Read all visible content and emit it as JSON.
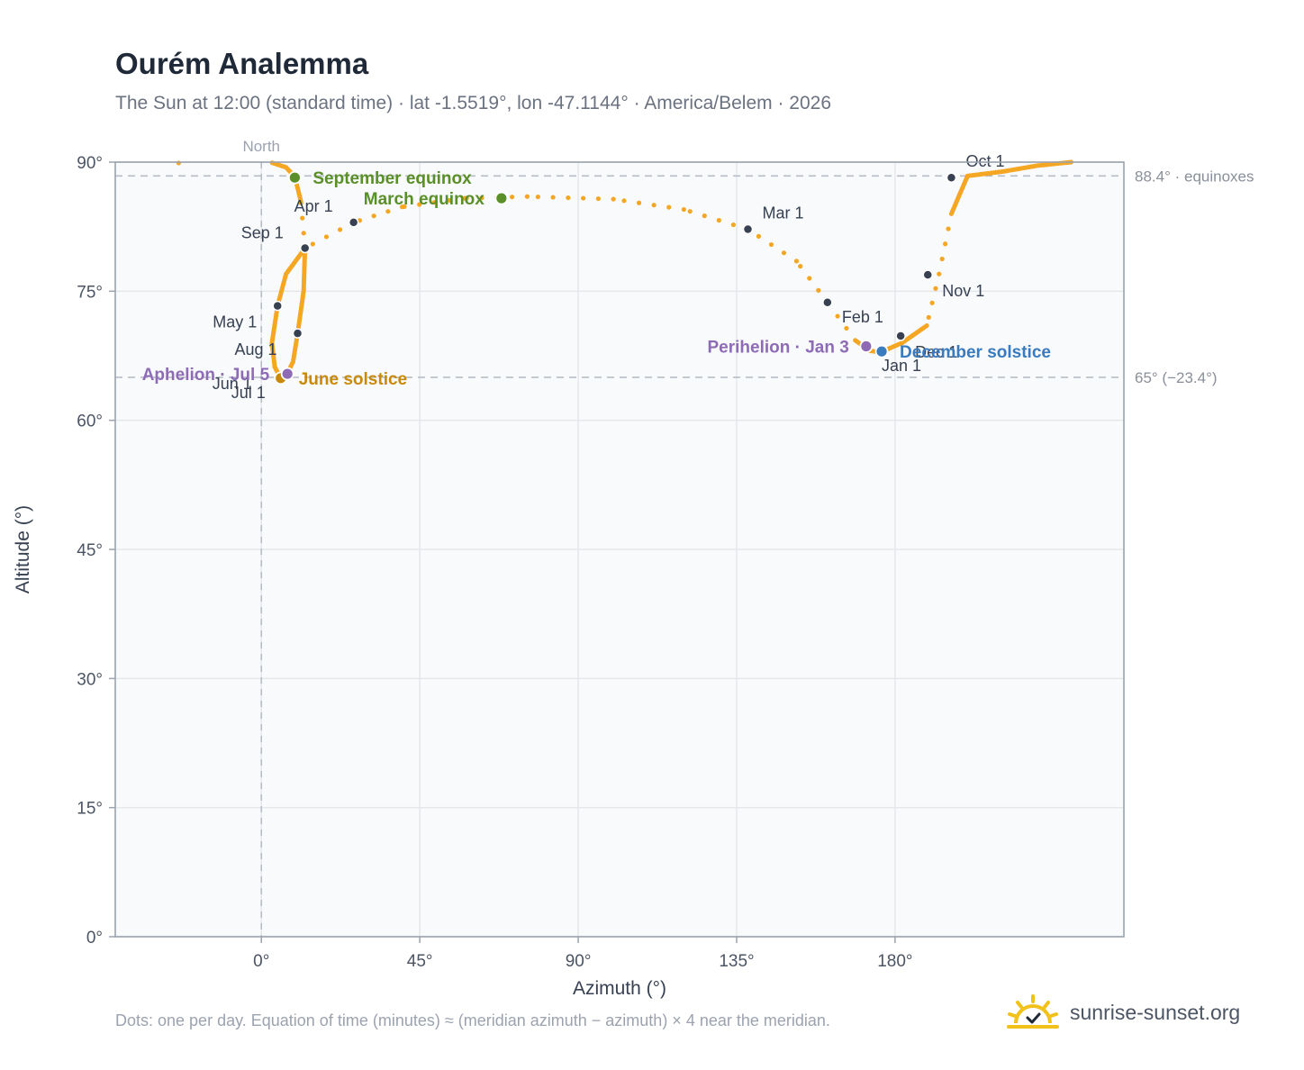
{
  "title": "Ourém Analemma",
  "subtitle": "The Sun at 12:00 (standard time) · lat -1.5519°, lon -47.1144° · America/Belem · 2026",
  "footnote": "Dots: one per day. Equation of time (minutes) ≈ (meridian azimuth − azimuth) × 4 near the meridian.",
  "brand": {
    "name": "sunrise-sunset.org",
    "logo_icon": "sun-logo-icon"
  },
  "colors": {
    "curve": "#f5a623",
    "month_dot": "#374151",
    "equinox": "#5a8f29",
    "solstice_june": "#c98a0c",
    "solstice_december": "#3a7bbf",
    "apsis": "#8e6bb5",
    "plot_bg": "#f8fafc",
    "grid": "#e5e7eb",
    "reference": "#b8bec7"
  },
  "chart_data": {
    "type": "scatter",
    "title": "Ourém Analemma",
    "xlabel": "Azimuth (°)",
    "ylabel": "Altitude (°)",
    "xlim": [
      -41.5,
      245
    ],
    "ylim": [
      0,
      90
    ],
    "xticks": [
      {
        "value": 0,
        "label": "0°"
      },
      {
        "value": 45,
        "label": "45°"
      },
      {
        "value": 90,
        "label": "90°"
      },
      {
        "value": 135,
        "label": "135°"
      },
      {
        "value": 180,
        "label": "180°"
      }
    ],
    "yticks": [
      {
        "value": 0,
        "label": "0°"
      },
      {
        "value": 15,
        "label": "15°"
      },
      {
        "value": 30,
        "label": "30°"
      },
      {
        "value": 45,
        "label": "45°"
      },
      {
        "value": 60,
        "label": "60°"
      },
      {
        "value": 75,
        "label": "75°"
      },
      {
        "value": 90,
        "label": "90°"
      }
    ],
    "grid": true,
    "north_line": {
      "x": 0,
      "label": "North"
    },
    "reference_lines": [
      {
        "y": 88.4,
        "label": "88.4° · equinoxes"
      },
      {
        "y": 65,
        "label": "65° (−23.4°)"
      }
    ],
    "curve_anchors": [
      [
        230.0,
        90.0
      ],
      [
        220.5,
        89.6
      ],
      [
        210.5,
        88.9
      ],
      [
        200.6,
        88.4
      ],
      [
        196.0,
        84.0
      ],
      [
        192.5,
        77.0
      ],
      [
        189.0,
        71.0
      ],
      [
        182.0,
        69.0
      ],
      [
        175.8,
        67.9
      ],
      [
        172.7,
        68.1
      ],
      [
        168.7,
        69.3
      ],
      [
        160.8,
        73.7
      ],
      [
        152.0,
        78.5
      ],
      [
        138.2,
        82.2
      ],
      [
        120.0,
        84.5
      ],
      [
        100.0,
        85.7
      ],
      [
        75.5,
        86.0
      ],
      [
        57.7,
        85.8
      ],
      [
        40.0,
        84.8
      ],
      [
        26.2,
        83.0
      ],
      [
        12.4,
        80.0
      ],
      [
        7.0,
        77.0
      ],
      [
        4.6,
        73.3
      ],
      [
        3.0,
        69.0
      ],
      [
        3.8,
        66.2
      ],
      [
        5.5,
        64.9
      ],
      [
        7.3,
        65.4
      ],
      [
        9.0,
        66.8
      ],
      [
        10.3,
        70.1
      ],
      [
        12.0,
        75.0
      ],
      [
        12.4,
        80.0
      ],
      [
        11.2,
        85.5
      ],
      [
        9.5,
        88.3
      ],
      [
        7.0,
        89.4
      ],
      [
        2.5,
        90.0
      ]
    ],
    "curve_extra_points": [
      {
        "x": -23.5,
        "y": 89.9
      }
    ],
    "month_markers": [
      {
        "label": "Jan 1",
        "x": 176.2,
        "y": 68.0,
        "dx": 0,
        "dy": 22
      },
      {
        "label": "Feb 1",
        "x": 160.8,
        "y": 73.7,
        "dx": 16,
        "dy": 22
      },
      {
        "label": "Mar 1",
        "x": 138.2,
        "y": 82.2,
        "dx": 16,
        "dy": -12
      },
      {
        "label": "Apr 1",
        "x": 26.2,
        "y": 83.0,
        "dx": -66,
        "dy": -12
      },
      {
        "label": "May 1",
        "x": 4.6,
        "y": 73.3,
        "dx": -72,
        "dy": 24
      },
      {
        "label": "Jun 1",
        "x": 5.5,
        "y": 64.9,
        "dx": -76,
        "dy": 12
      },
      {
        "label": "Jul 1",
        "x": 5.5,
        "y": 64.9,
        "dx": -55,
        "dy": 22
      },
      {
        "label": "Aug 1",
        "x": 10.3,
        "y": 70.1,
        "dx": -70,
        "dy": 24
      },
      {
        "label": "Sep 1",
        "x": 12.4,
        "y": 80.0,
        "dx": -71,
        "dy": -11
      },
      {
        "label": "Oct 1",
        "x": 196.0,
        "y": 88.2,
        "dx": 16,
        "dy": -12
      },
      {
        "label": "Nov 1",
        "x": 189.3,
        "y": 76.9,
        "dx": 16,
        "dy": 24
      },
      {
        "label": "Dec 1",
        "x": 181.6,
        "y": 69.8,
        "dx": 16,
        "dy": 24
      }
    ],
    "events": [
      {
        "label": "September equinox",
        "x": 9.5,
        "y": 88.2,
        "color": "#5a8f29",
        "anchor": "start",
        "dx": 20,
        "dy": 7
      },
      {
        "label": "March equinox",
        "x": 68.2,
        "y": 85.8,
        "color": "#5a8f29",
        "anchor": "end",
        "dx": -19,
        "dy": 7
      },
      {
        "label": "June solstice",
        "x": 5.5,
        "y": 64.9,
        "color": "#c98a0c",
        "anchor": "start",
        "dx": 20,
        "dy": 7
      },
      {
        "label": "December solstice",
        "x": 176.2,
        "y": 68.0,
        "color": "#3a7bbf",
        "anchor": "start",
        "dx": 20,
        "dy": 7
      },
      {
        "label": "Perihelion · Jan 3",
        "x": 171.8,
        "y": 68.6,
        "color": "#8e6bb5",
        "anchor": "end",
        "dx": -19,
        "dy": 7
      },
      {
        "label": "Aphelion · Jul 5",
        "x": 7.4,
        "y": 65.4,
        "color": "#8e6bb5",
        "anchor": "end",
        "dx": -20,
        "dy": 7
      }
    ]
  }
}
